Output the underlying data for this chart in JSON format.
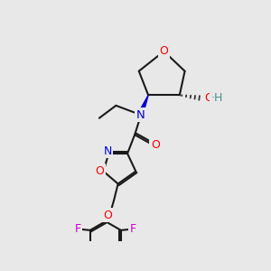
{
  "bg_color": "#e8e8e8",
  "bond_color": "#1a1a1a",
  "bond_width": 1.5,
  "atom_colors": {
    "O": "#ff0000",
    "N": "#0000dd",
    "F": "#cc00cc",
    "OH_color": "#4a9090",
    "C": "#1a1a1a"
  },
  "figsize": [
    3.0,
    3.0
  ],
  "dpi": 100
}
